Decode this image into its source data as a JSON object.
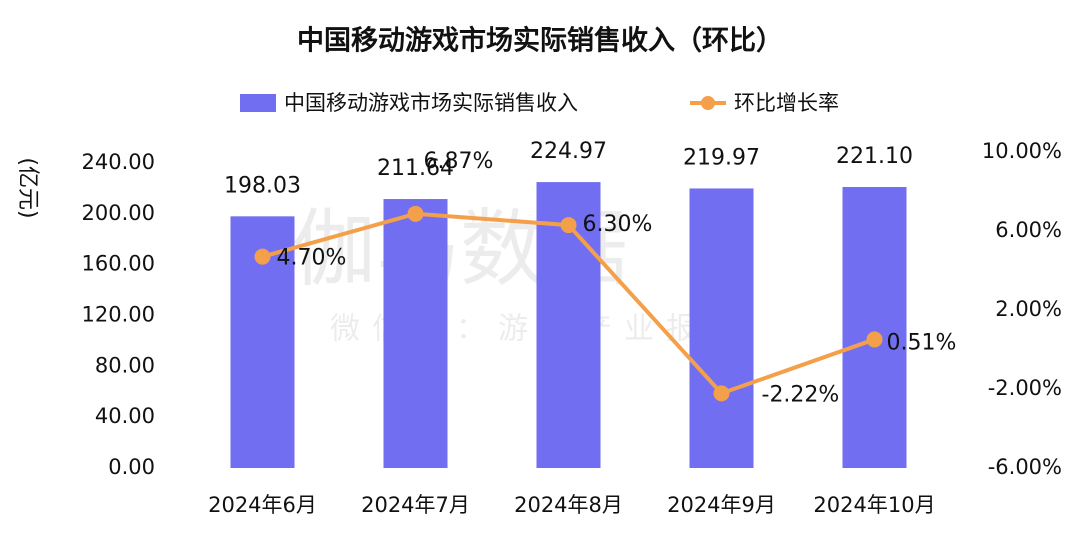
{
  "chart_data": {
    "type": "bar-line",
    "title": "中国移动游戏市场实际销售收入（环比）",
    "y_axis_label": "(亿元)",
    "watermark": "伽马数据",
    "watermark_subtitle": "微信号：游戏产业报告",
    "categories": [
      "2024年6月",
      "2024年7月",
      "2024年8月",
      "2024年9月",
      "2024年10月"
    ],
    "series": [
      {
        "name": "中国移动游戏市场实际销售收入",
        "type": "bar",
        "color": "#716ef2",
        "axis": "y",
        "values": [
          198.03,
          211.64,
          224.97,
          219.97,
          221.1
        ],
        "value_labels": [
          "198.03",
          "211.64",
          "224.97",
          "219.97",
          "221.10"
        ]
      },
      {
        "name": "环比增长率",
        "type": "line",
        "color": "#f4a04a",
        "axis": "y2",
        "values": [
          4.7,
          6.87,
          6.3,
          -2.22,
          0.51
        ],
        "value_labels": [
          "4.70%",
          "6.87%",
          "6.30%",
          "-2.22%",
          "0.51%"
        ]
      }
    ],
    "ylim": [
      0,
      240
    ],
    "yticks": [
      {
        "value": 0,
        "label": "0.00"
      },
      {
        "value": 40,
        "label": "40.00"
      },
      {
        "value": 80,
        "label": "80.00"
      },
      {
        "value": 120,
        "label": "120.00"
      },
      {
        "value": 160,
        "label": "160.00"
      },
      {
        "value": 200,
        "label": "200.00"
      },
      {
        "value": 240,
        "label": "240.00"
      }
    ],
    "y2lim": [
      -6,
      10
    ],
    "y2ticks": [
      {
        "value": -6,
        "label": "-6.00%"
      },
      {
        "value": -2,
        "label": "-2.00%"
      },
      {
        "value": 2,
        "label": "2.00%"
      },
      {
        "value": 6,
        "label": "6.00%"
      },
      {
        "value": 10,
        "label": "10.00%"
      }
    ],
    "grid": false
  }
}
